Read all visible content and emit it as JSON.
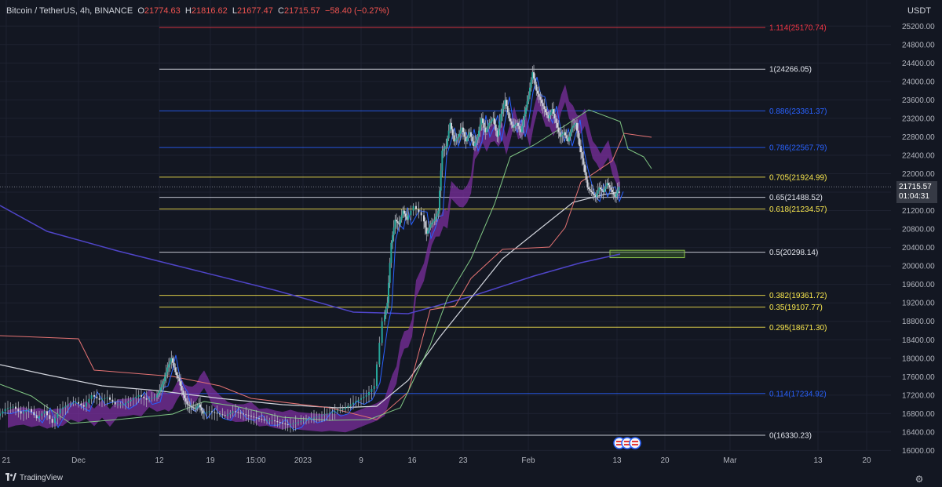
{
  "header": {
    "symbol": "Bitcoin / TetherUS, 4h, BINANCE",
    "o_label": "O",
    "o_value": "21774.63",
    "h_label": "H",
    "h_value": "21816.62",
    "l_label": "L",
    "l_value": "21677.47",
    "c_label": "C",
    "c_value": "21715.57",
    "change": "−58.40 (−0.27%)"
  },
  "currency": "USDT",
  "last_price": {
    "value": "21715.57",
    "countdown": "01:04:31"
  },
  "footer": {
    "brand": "TradingView"
  },
  "icons": [
    "tradingview-logo-icon",
    "gear-icon",
    "event-flag-icon"
  ],
  "colors": {
    "background": "#131722",
    "price_labels": "#b2b5be",
    "fib_white": "#e0e3eb",
    "fib_red": "#f23645",
    "fib_blue": "#2962ff",
    "fib_yellow": "#fbe94e",
    "band_fill": "#7b2f9e",
    "ma_white": "#d1d4dc",
    "ma_blue": "#4f45c8",
    "tenkan": "#2962ff",
    "kijun": "#e57373",
    "span": "#81c784",
    "zone": "#5a8a3a"
  },
  "chart_data": {
    "type": "line",
    "title": "Bitcoin / TetherUS, 4h, BINANCE",
    "price_axis_ticks": [
      "25200.00",
      "24800.00",
      "24400.00",
      "24000.00",
      "23600.00",
      "23200.00",
      "22800.00",
      "22400.00",
      "22000.00",
      "21600.00",
      "21200.00",
      "20800.00",
      "20400.00",
      "20000.00",
      "19600.00",
      "19200.00",
      "18800.00",
      "18400.00",
      "18000.00",
      "17600.00",
      "17200.00",
      "16800.00",
      "16400.00",
      "16000.00"
    ],
    "time_axis_ticks": [
      "21",
      "Dec",
      "12",
      "19",
      "15:00",
      "2023",
      "9",
      "16",
      "23",
      "Feb",
      "13",
      "20",
      "Mar",
      "13",
      "20"
    ],
    "ylim": [
      15950,
      25400
    ],
    "fib_levels": [
      {
        "label": "1.114(25170.74)",
        "price": 25170.74,
        "color": "red"
      },
      {
        "label": "1(24266.05)",
        "price": 24266.05,
        "color": "white"
      },
      {
        "label": "0.886(23361.37)",
        "price": 23361.37,
        "color": "blue"
      },
      {
        "label": "0.786(22567.79)",
        "price": 22567.79,
        "color": "blue"
      },
      {
        "label": "0.705(21924.99)",
        "price": 21924.99,
        "color": "yellow"
      },
      {
        "label": "0.65(21488.52)",
        "price": 21488.52,
        "color": "white"
      },
      {
        "label": "0.618(21234.57)",
        "price": 21234.57,
        "color": "yellow"
      },
      {
        "label": "0.5(20298.14)",
        "price": 20298.14,
        "color": "white"
      },
      {
        "label": "0.382(19361.72)",
        "price": 19361.72,
        "color": "yellow"
      },
      {
        "label": "0.35(19107.77)",
        "price": 19107.77,
        "color": "yellow"
      },
      {
        "label": "0.295(18671.30)",
        "price": 18671.3,
        "color": "yellow"
      },
      {
        "label": "0.114(17234.92)",
        "price": 17234.92,
        "color": "blue"
      },
      {
        "label": "0(16330.23)",
        "price": 16330.23,
        "color": "white"
      }
    ],
    "zone": {
      "price_top": 20340,
      "price_bottom": 20180
    },
    "price_path": [
      [
        0,
        16750
      ],
      [
        10,
        16900
      ],
      [
        20,
        16950
      ],
      [
        30,
        16800
      ],
      [
        40,
        16900
      ],
      [
        50,
        16700
      ],
      [
        60,
        16850
      ],
      [
        70,
        16600
      ],
      [
        80,
        16900
      ],
      [
        90,
        17000
      ],
      [
        100,
        17050
      ],
      [
        110,
        16950
      ],
      [
        120,
        17200
      ],
      [
        130,
        17100
      ],
      [
        140,
        17150
      ],
      [
        150,
        17000
      ],
      [
        160,
        17000
      ],
      [
        170,
        17100
      ],
      [
        180,
        17200
      ],
      [
        190,
        17100
      ],
      [
        200,
        17150
      ],
      [
        205,
        17300
      ],
      [
        210,
        17500
      ],
      [
        215,
        17800
      ],
      [
        220,
        18000
      ],
      [
        225,
        17700
      ],
      [
        230,
        17500
      ],
      [
        235,
        17200
      ],
      [
        240,
        17000
      ],
      [
        245,
        16950
      ],
      [
        250,
        16900
      ],
      [
        255,
        17000
      ],
      [
        260,
        16800
      ],
      [
        270,
        16850
      ],
      [
        280,
        16800
      ],
      [
        290,
        16750
      ],
      [
        300,
        16850
      ],
      [
        310,
        16800
      ],
      [
        320,
        16750
      ],
      [
        330,
        16700
      ],
      [
        340,
        16650
      ],
      [
        350,
        16650
      ],
      [
        360,
        16600
      ],
      [
        370,
        16550
      ],
      [
        380,
        16600
      ],
      [
        390,
        16650
      ],
      [
        400,
        16700
      ],
      [
        410,
        16750
      ],
      [
        420,
        16800
      ],
      [
        430,
        16850
      ],
      [
        440,
        16900
      ],
      [
        450,
        17000
      ],
      [
        460,
        17100
      ],
      [
        470,
        17200
      ],
      [
        480,
        17400
      ],
      [
        490,
        18800
      ],
      [
        495,
        19200
      ],
      [
        500,
        20500
      ],
      [
        505,
        21000
      ],
      [
        510,
        20900
      ],
      [
        515,
        21200
      ],
      [
        520,
        21000
      ],
      [
        530,
        21300
      ],
      [
        540,
        21100
      ],
      [
        545,
        20700
      ],
      [
        550,
        20900
      ],
      [
        555,
        21000
      ],
      [
        560,
        21200
      ],
      [
        565,
        22500
      ],
      [
        570,
        22600
      ],
      [
        575,
        23100
      ],
      [
        580,
        22700
      ],
      [
        585,
        22800
      ],
      [
        590,
        23000
      ],
      [
        595,
        22700
      ],
      [
        600,
        22900
      ],
      [
        605,
        22600
      ],
      [
        610,
        22800
      ],
      [
        615,
        23200
      ],
      [
        620,
        22900
      ],
      [
        625,
        23100
      ],
      [
        630,
        23200
      ],
      [
        635,
        22800
      ],
      [
        640,
        23300
      ],
      [
        645,
        23600
      ],
      [
        650,
        23200
      ],
      [
        655,
        23000
      ],
      [
        660,
        23100
      ],
      [
        665,
        22900
      ],
      [
        670,
        23300
      ],
      [
        675,
        23700
      ],
      [
        680,
        24200
      ],
      [
        685,
        23800
      ],
      [
        690,
        23600
      ],
      [
        695,
        23400
      ],
      [
        700,
        23200
      ],
      [
        705,
        23400
      ],
      [
        710,
        23100
      ],
      [
        715,
        22800
      ],
      [
        720,
        22900
      ],
      [
        725,
        22700
      ],
      [
        730,
        23000
      ],
      [
        735,
        23100
      ],
      [
        740,
        22600
      ],
      [
        745,
        22200
      ],
      [
        750,
        21700
      ],
      [
        755,
        21600
      ],
      [
        760,
        21500
      ],
      [
        765,
        21700
      ],
      [
        770,
        21600
      ],
      [
        775,
        21800
      ],
      [
        780,
        21650
      ],
      [
        785,
        21500
      ],
      [
        790,
        21715
      ]
    ]
  }
}
